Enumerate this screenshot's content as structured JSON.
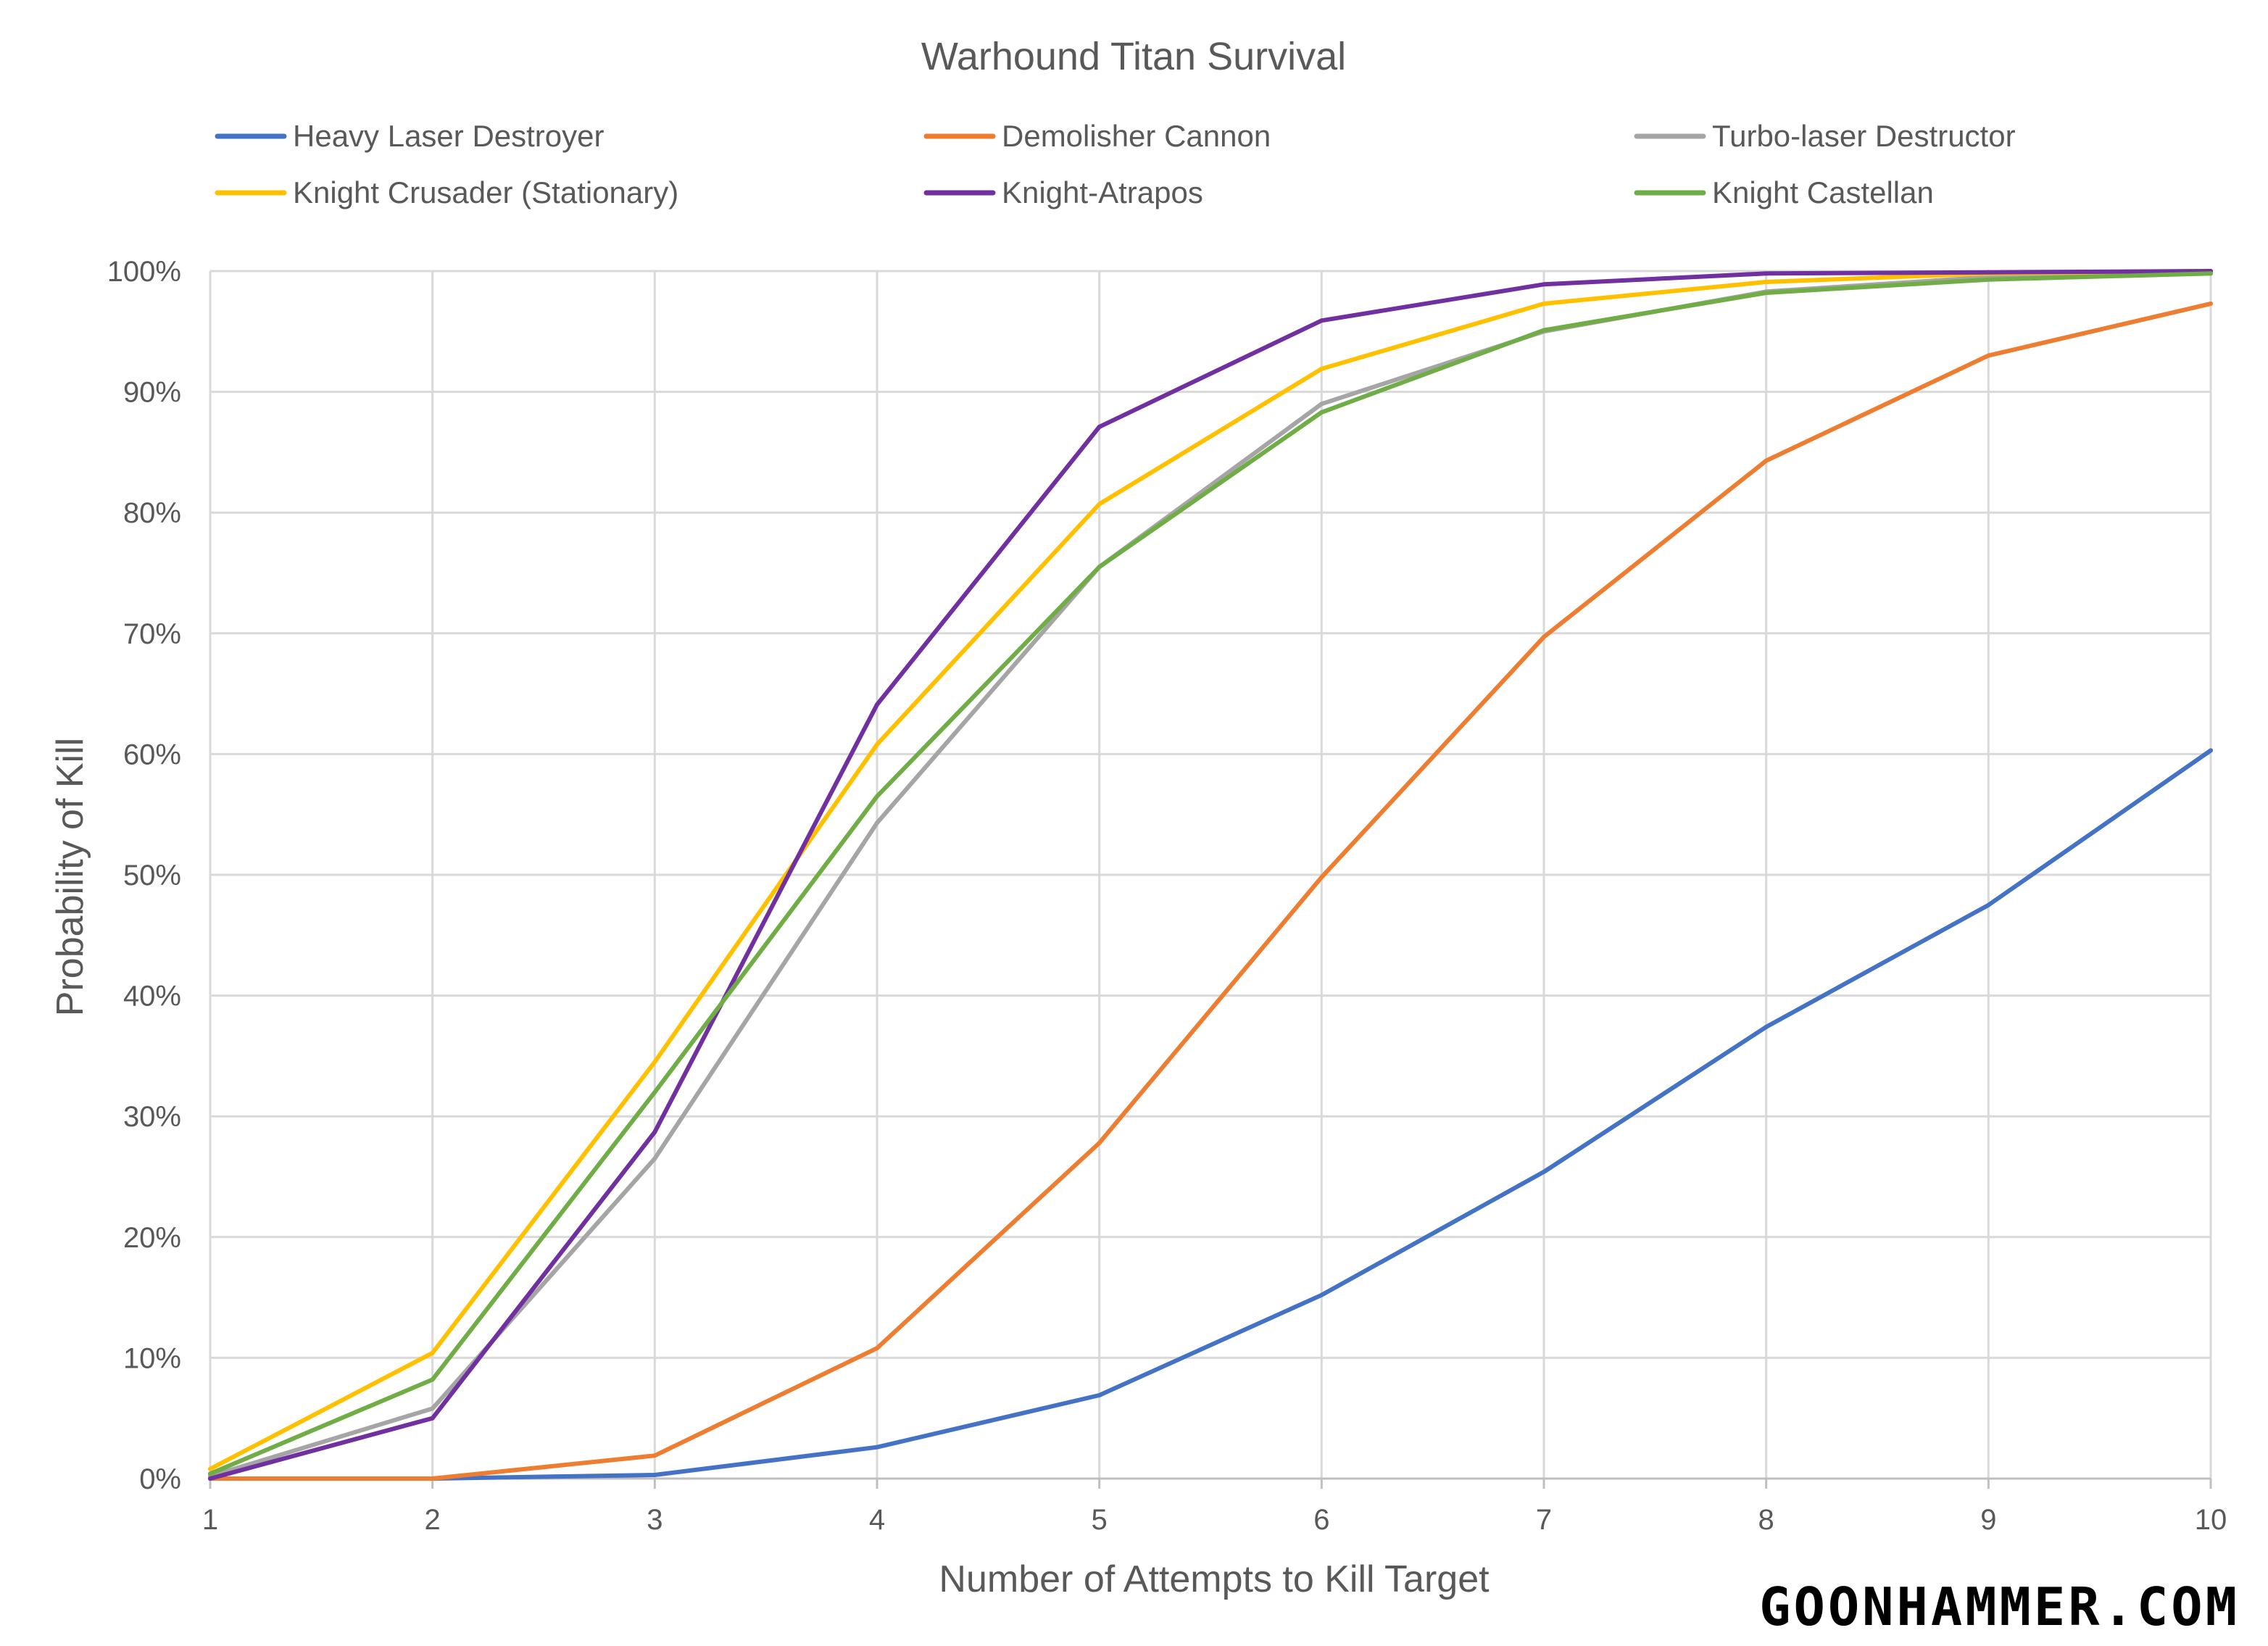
{
  "chart_data": {
    "type": "line",
    "title": "Warhound Titan Survival",
    "xlabel": "Number of Attempts to Kill Target",
    "ylabel": "Probability of Kill",
    "x": [
      1,
      2,
      3,
      4,
      5,
      6,
      7,
      8,
      9,
      10
    ],
    "x_tick_labels": [
      "1",
      "2",
      "3",
      "4",
      "5",
      "6",
      "7",
      "8",
      "9",
      "10"
    ],
    "ylim": [
      0,
      100
    ],
    "y_tick_labels": [
      "0%",
      "10%",
      "20%",
      "30%",
      "40%",
      "50%",
      "60%",
      "70%",
      "80%",
      "90%",
      "100%"
    ],
    "grid": true,
    "legend_position": "top",
    "series": [
      {
        "name": "Heavy Laser Destroyer",
        "color": "#4472C4",
        "values": [
          0,
          0,
          0.3,
          2.6,
          6.9,
          15.2,
          25.4,
          37.4,
          47.5,
          60.3
        ]
      },
      {
        "name": "Demolisher Cannon",
        "color": "#ED7D31",
        "values": [
          0,
          0,
          1.9,
          10.8,
          27.8,
          49.8,
          69.7,
          84.3,
          93.0,
          97.3
        ]
      },
      {
        "name": "Turbo-laser Destructor",
        "color": "#A5A5A5",
        "values": [
          0.2,
          5.8,
          26.5,
          54.3,
          75.5,
          89.0,
          95.0,
          98.3,
          99.5,
          99.9
        ]
      },
      {
        "name": "Knight Crusader (Stationary)",
        "color": "#FFC000",
        "values": [
          0.8,
          10.4,
          34.5,
          60.8,
          80.7,
          91.9,
          97.3,
          99.1,
          99.8,
          100
        ]
      },
      {
        "name": "Knight-Atrapos",
        "color": "#7030A0",
        "values": [
          0,
          5.0,
          28.7,
          64.1,
          87.1,
          95.9,
          98.9,
          99.8,
          99.9,
          100
        ]
      },
      {
        "name": "Knight Castellan",
        "color": "#70AD47",
        "values": [
          0.4,
          8.2,
          32.0,
          56.5,
          75.5,
          88.3,
          95.1,
          98.2,
          99.3,
          99.8
        ]
      }
    ]
  },
  "watermark": "GOONHAMMER.COM"
}
